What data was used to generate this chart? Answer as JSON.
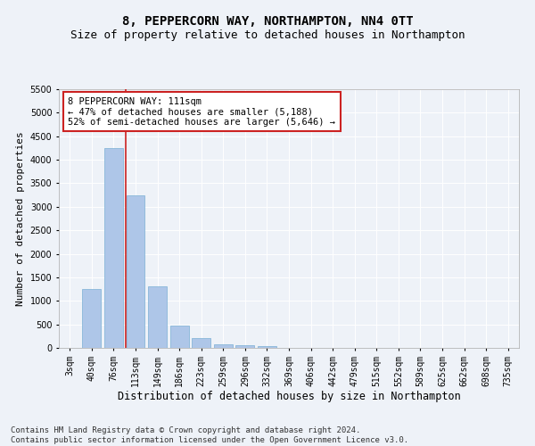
{
  "title": "8, PEPPERCORN WAY, NORTHAMPTON, NN4 0TT",
  "subtitle": "Size of property relative to detached houses in Northampton",
  "xlabel": "Distribution of detached houses by size in Northampton",
  "ylabel": "Number of detached properties",
  "categories": [
    "3sqm",
    "40sqm",
    "76sqm",
    "113sqm",
    "149sqm",
    "186sqm",
    "223sqm",
    "259sqm",
    "296sqm",
    "332sqm",
    "369sqm",
    "406sqm",
    "442sqm",
    "479sqm",
    "515sqm",
    "552sqm",
    "589sqm",
    "625sqm",
    "662sqm",
    "698sqm",
    "735sqm"
  ],
  "values": [
    0,
    1250,
    4250,
    3250,
    1300,
    475,
    200,
    75,
    60,
    35,
    0,
    0,
    0,
    0,
    0,
    0,
    0,
    0,
    0,
    0,
    0
  ],
  "bar_color": "#aec6e8",
  "bar_edge_color": "#7aafd4",
  "vline_x_index": 2.55,
  "vline_color": "#cc2222",
  "annotation_text": "8 PEPPERCORN WAY: 111sqm\n← 47% of detached houses are smaller (5,188)\n52% of semi-detached houses are larger (5,646) →",
  "annotation_box_facecolor": "#ffffff",
  "annotation_box_edgecolor": "#cc2222",
  "ylim": [
    0,
    5500
  ],
  "yticks": [
    0,
    500,
    1000,
    1500,
    2000,
    2500,
    3000,
    3500,
    4000,
    4500,
    5000,
    5500
  ],
  "footer_line1": "Contains HM Land Registry data © Crown copyright and database right 2024.",
  "footer_line2": "Contains public sector information licensed under the Open Government Licence v3.0.",
  "bg_color": "#eef2f8",
  "grid_color": "#ffffff",
  "title_fontsize": 10,
  "subtitle_fontsize": 9,
  "xlabel_fontsize": 8.5,
  "ylabel_fontsize": 8,
  "tick_fontsize": 7,
  "annotation_fontsize": 7.5,
  "footer_fontsize": 6.5
}
